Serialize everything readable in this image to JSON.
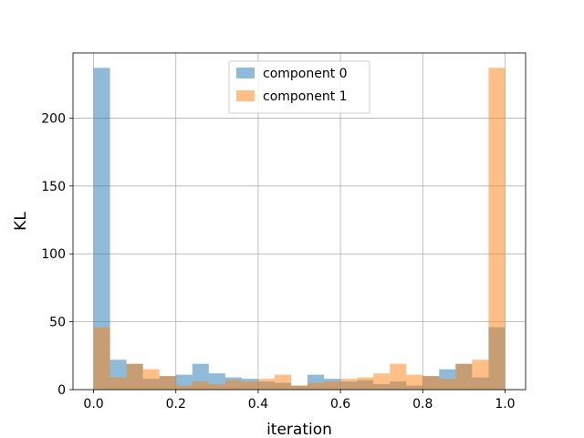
{
  "chart_data": {
    "type": "histogram",
    "xlabel": "iteration",
    "ylabel": "KL",
    "xlim": [
      -0.05,
      1.05
    ],
    "ylim": [
      0,
      248
    ],
    "xticks": [
      "0.0",
      "0.2",
      "0.4",
      "0.6",
      "0.8",
      "1.0"
    ],
    "xtick_values": [
      0.0,
      0.2,
      0.4,
      0.6,
      0.8,
      1.0
    ],
    "yticks": [
      "0",
      "50",
      "100",
      "150",
      "200"
    ],
    "ytick_values": [
      0,
      50,
      100,
      150,
      200
    ],
    "grid": true,
    "legend_position": "top-center",
    "bin_edges": [
      0.0,
      0.04,
      0.08,
      0.12,
      0.16,
      0.2,
      0.24,
      0.28,
      0.32,
      0.36,
      0.4,
      0.44,
      0.48,
      0.52,
      0.56,
      0.6,
      0.64,
      0.68,
      0.72,
      0.76,
      0.8,
      0.84,
      0.88,
      0.92,
      0.96,
      1.0
    ],
    "series": [
      {
        "name": "component 0",
        "color": "#1f77b4",
        "alpha": 0.5,
        "values": [
          237,
          22,
          19,
          8,
          10,
          11,
          19,
          12,
          9,
          8,
          6,
          5,
          3,
          11,
          8,
          6,
          7,
          4,
          6,
          3,
          10,
          15,
          19,
          9,
          46
        ]
      },
      {
        "name": "component 1",
        "color": "#ff7f0e",
        "alpha": 0.5,
        "values": [
          46,
          9,
          19,
          15,
          10,
          3,
          6,
          4,
          7,
          6,
          8,
          11,
          3,
          5,
          6,
          8,
          9,
          12,
          19,
          11,
          10,
          8,
          19,
          22,
          237
        ]
      }
    ]
  }
}
